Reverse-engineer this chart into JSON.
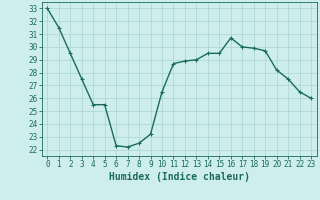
{
  "x": [
    0,
    1,
    2,
    3,
    4,
    5,
    6,
    7,
    8,
    9,
    10,
    11,
    12,
    13,
    14,
    15,
    16,
    17,
    18,
    19,
    20,
    21,
    22,
    23
  ],
  "y": [
    33,
    31.5,
    29.5,
    27.5,
    25.5,
    25.5,
    22.3,
    22.2,
    22.5,
    23.2,
    26.5,
    28.7,
    28.9,
    29.0,
    29.5,
    29.5,
    30.7,
    30.0,
    29.9,
    29.7,
    28.2,
    27.5,
    26.5,
    26.0
  ],
  "line_color": "#1a6b5a",
  "marker": "+",
  "marker_size": 3,
  "marker_linewidth": 0.8,
  "bg_color": "#cdeeed",
  "grid_color": "#b0d8d4",
  "xlabel": "Humidex (Indice chaleur)",
  "ylim": [
    21.5,
    33.5
  ],
  "xlim": [
    -0.5,
    23.5
  ],
  "yticks": [
    22,
    23,
    24,
    25,
    26,
    27,
    28,
    29,
    30,
    31,
    32,
    33
  ],
  "xticks": [
    0,
    1,
    2,
    3,
    4,
    5,
    6,
    7,
    8,
    9,
    10,
    11,
    12,
    13,
    14,
    15,
    16,
    17,
    18,
    19,
    20,
    21,
    22,
    23
  ],
  "tick_label_fontsize": 5.5,
  "xlabel_fontsize": 7,
  "linewidth": 1.0
}
